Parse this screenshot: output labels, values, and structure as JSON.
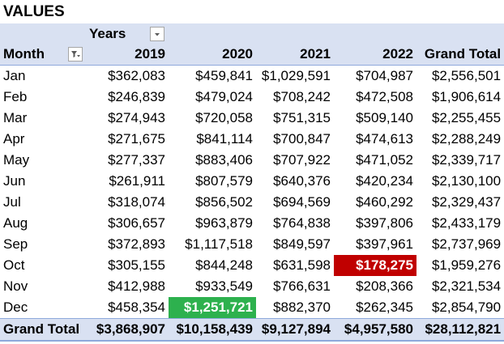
{
  "title": "VALUES",
  "header": {
    "columns_label": "Years",
    "row_label": "Month",
    "years": [
      "2019",
      "2020",
      "2021",
      "2022"
    ],
    "grand_total_label": "Grand Total"
  },
  "rows": [
    {
      "month": "Jan",
      "values": [
        "$362,083",
        "$459,841",
        "$1,029,591",
        "$704,987"
      ],
      "total": "$2,556,501"
    },
    {
      "month": "Feb",
      "values": [
        "$246,839",
        "$479,024",
        "$708,242",
        "$472,508"
      ],
      "total": "$1,906,614"
    },
    {
      "month": "Mar",
      "values": [
        "$274,943",
        "$720,058",
        "$751,315",
        "$509,140"
      ],
      "total": "$2,255,455"
    },
    {
      "month": "Apr",
      "values": [
        "$271,675",
        "$841,114",
        "$700,847",
        "$474,613"
      ],
      "total": "$2,288,249"
    },
    {
      "month": "May",
      "values": [
        "$277,337",
        "$883,406",
        "$707,922",
        "$471,052"
      ],
      "total": "$2,339,717"
    },
    {
      "month": "Jun",
      "values": [
        "$261,911",
        "$807,579",
        "$640,376",
        "$420,234"
      ],
      "total": "$2,130,100"
    },
    {
      "month": "Jul",
      "values": [
        "$318,074",
        "$856,502",
        "$694,569",
        "$460,292"
      ],
      "total": "$2,329,437"
    },
    {
      "month": "Aug",
      "values": [
        "$306,657",
        "$963,879",
        "$764,838",
        "$397,806"
      ],
      "total": "$2,433,179"
    },
    {
      "month": "Sep",
      "values": [
        "$372,893",
        "$1,117,518",
        "$849,597",
        "$397,961"
      ],
      "total": "$2,737,969"
    },
    {
      "month": "Oct",
      "values": [
        "$305,155",
        "$844,248",
        "$631,598",
        "$178,275"
      ],
      "total": "$1,959,276"
    },
    {
      "month": "Nov",
      "values": [
        "$412,988",
        "$933,549",
        "$766,631",
        "$208,366"
      ],
      "total": "$2,321,534"
    },
    {
      "month": "Dec",
      "values": [
        "$458,354",
        "$1,251,721",
        "$882,370",
        "$262,345"
      ],
      "total": "$2,854,790"
    }
  ],
  "grand_total_row": {
    "label": "Grand Total",
    "values": [
      "$3,868,907",
      "$10,158,439",
      "$9,127,894",
      "$4,957,580"
    ],
    "total": "$28,112,821"
  },
  "highlights": {
    "max": {
      "month": "Dec",
      "year": "2020",
      "color": "#2db14e"
    },
    "min": {
      "month": "Oct",
      "year": "2022",
      "color": "#c00000"
    }
  },
  "colors": {
    "header_fill": "#d9e1f2",
    "header_border": "#8ea9db",
    "max_highlight": "#2db14e",
    "min_highlight": "#c00000"
  },
  "icons": {
    "years_filter": "dropdown-arrow-icon",
    "month_filter": "filter-funnel-icon"
  }
}
